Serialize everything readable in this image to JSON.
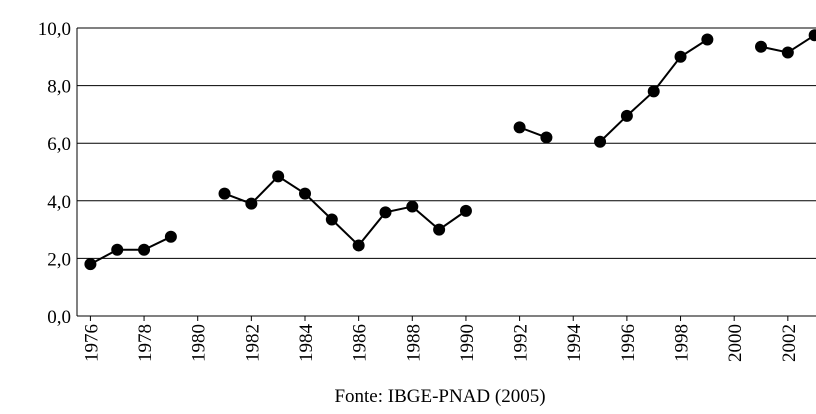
{
  "chart_data": {
    "type": "line",
    "source": "Fonte: IBGE-PNAD (2005)",
    "x": [
      1976,
      1977,
      1978,
      1979,
      1980,
      1981,
      1982,
      1983,
      1984,
      1985,
      1986,
      1987,
      1988,
      1989,
      1990,
      1991,
      1992,
      1993,
      1994,
      1995,
      1996,
      1997,
      1998,
      1999,
      2000,
      2001,
      2002,
      2003
    ],
    "values": [
      1.8,
      2.3,
      2.3,
      2.75,
      null,
      4.25,
      3.9,
      4.85,
      4.25,
      3.35,
      2.45,
      3.6,
      3.8,
      3.0,
      3.65,
      null,
      6.55,
      6.2,
      null,
      6.05,
      6.95,
      7.8,
      9.0,
      9.6,
      null,
      9.35,
      9.15,
      9.75
    ],
    "color": "#000000",
    "xlim": [
      1975.5,
      2003.05
    ],
    "xticks": [
      1976,
      1978,
      1980,
      1982,
      1984,
      1986,
      1988,
      1990,
      1992,
      1994,
      1996,
      1998,
      2000,
      2002
    ],
    "ylim": [
      0,
      10
    ],
    "yticks": [
      {
        "value": 0,
        "label": "0,0"
      },
      {
        "value": 2,
        "label": "2,0"
      },
      {
        "value": 4,
        "label": "4,0"
      },
      {
        "value": 6,
        "label": "6,0"
      },
      {
        "value": 8,
        "label": "8,0"
      },
      {
        "value": 10,
        "label": "10,0"
      }
    ],
    "grid": true
  }
}
